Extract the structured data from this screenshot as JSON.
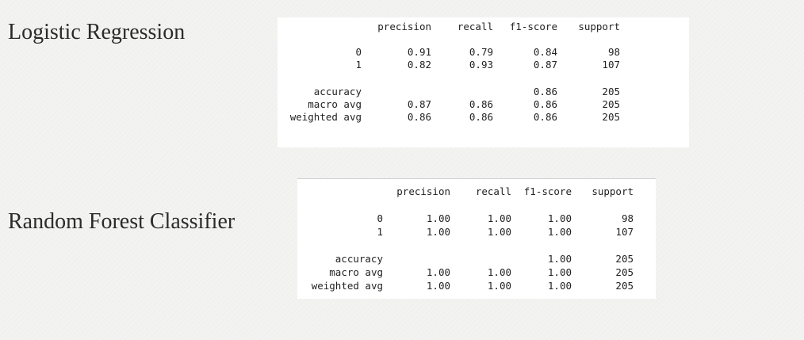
{
  "sections": [
    {
      "title": "Logistic Regression",
      "report": {
        "columns": [
          "precision",
          "recall",
          "f1-score",
          "support"
        ],
        "rows": [
          {
            "label": "0",
            "precision": "0.91",
            "recall": "0.79",
            "f1": "0.84",
            "support": "98"
          },
          {
            "label": "1",
            "precision": "0.82",
            "recall": "0.93",
            "f1": "0.87",
            "support": "107"
          }
        ],
        "summary": [
          {
            "label": "accuracy",
            "precision": "",
            "recall": "",
            "f1": "0.86",
            "support": "205"
          },
          {
            "label": "macro avg",
            "precision": "0.87",
            "recall": "0.86",
            "f1": "0.86",
            "support": "205"
          },
          {
            "label": "weighted avg",
            "precision": "0.86",
            "recall": "0.86",
            "f1": "0.86",
            "support": "205"
          }
        ]
      }
    },
    {
      "title": "Random Forest Classifier",
      "report": {
        "columns": [
          "precision",
          "recall",
          "f1-score",
          "support"
        ],
        "rows": [
          {
            "label": "0",
            "precision": "1.00",
            "recall": "1.00",
            "f1": "1.00",
            "support": "98"
          },
          {
            "label": "1",
            "precision": "1.00",
            "recall": "1.00",
            "f1": "1.00",
            "support": "107"
          }
        ],
        "summary": [
          {
            "label": "accuracy",
            "precision": "",
            "recall": "",
            "f1": "1.00",
            "support": "205"
          },
          {
            "label": "macro avg",
            "precision": "1.00",
            "recall": "1.00",
            "f1": "1.00",
            "support": "205"
          },
          {
            "label": "weighted avg",
            "precision": "1.00",
            "recall": "1.00",
            "f1": "1.00",
            "support": "205"
          }
        ]
      }
    }
  ]
}
